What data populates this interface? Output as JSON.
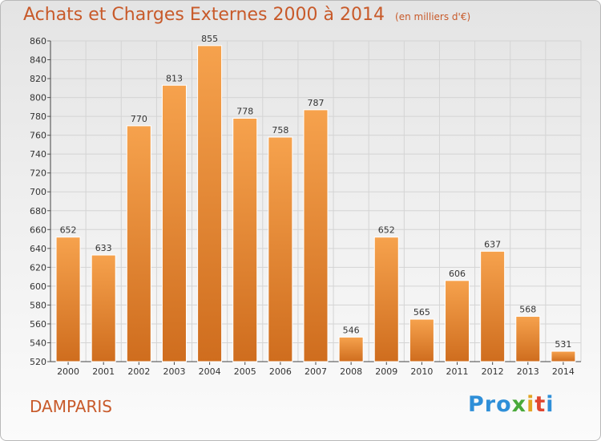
{
  "title": "Achats et Charges Externes 2000 à 2014",
  "unit": "(en milliers d'€)",
  "commune": "DAMPARIS",
  "logo": {
    "p1": "Pro",
    "p2": "x",
    "p3": "i",
    "p4": "t",
    "p5": "i"
  },
  "colors": {
    "bar_light": "#f6a24d",
    "bar_dark": "#cf6d1e",
    "title": "#c85a2a"
  },
  "chart_data": {
    "type": "bar",
    "categories": [
      "2000",
      "2001",
      "2002",
      "2003",
      "2004",
      "2005",
      "2006",
      "2007",
      "2008",
      "2009",
      "2010",
      "2011",
      "2012",
      "2013",
      "2014"
    ],
    "values": [
      652,
      633,
      770,
      813,
      855,
      778,
      758,
      787,
      546,
      652,
      565,
      606,
      637,
      568,
      531
    ],
    "ylim": [
      520,
      860
    ],
    "yticks": [
      520,
      540,
      560,
      580,
      600,
      620,
      640,
      660,
      680,
      700,
      720,
      740,
      760,
      780,
      800,
      820,
      840,
      860
    ],
    "grid": true
  }
}
